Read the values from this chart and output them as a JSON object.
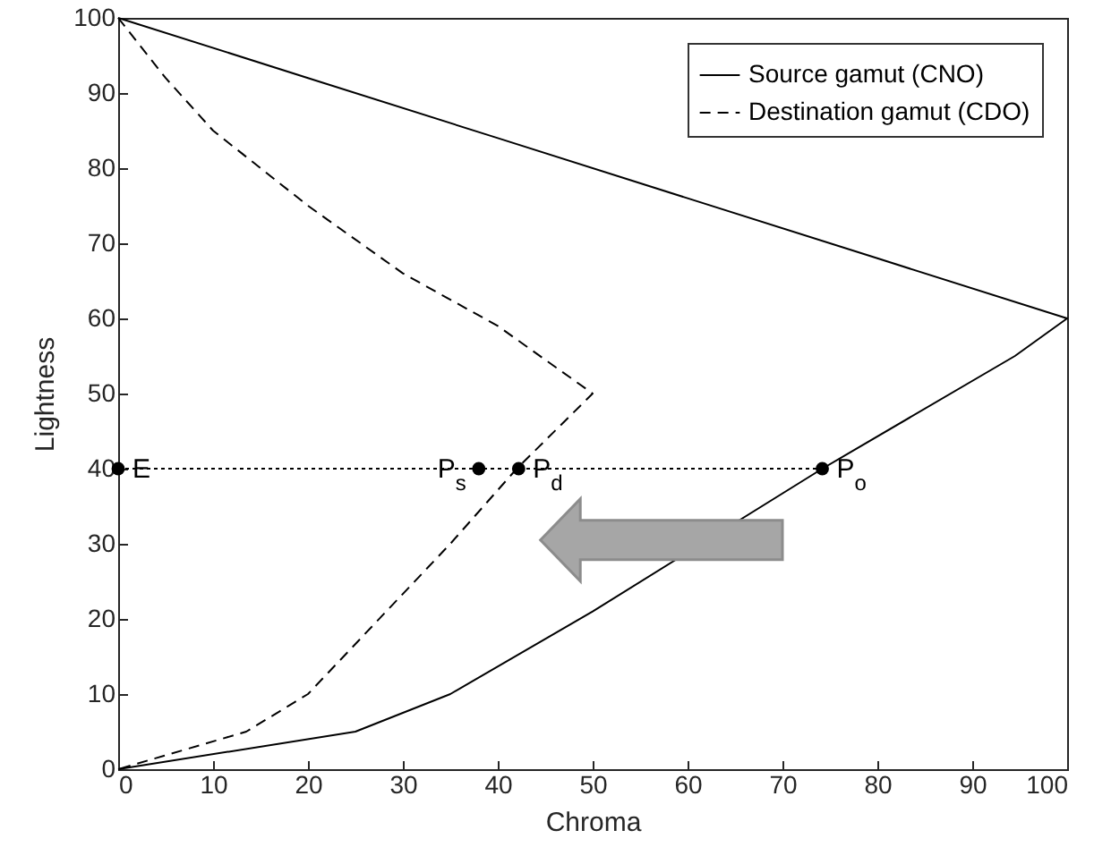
{
  "chart_data": {
    "type": "line",
    "xlabel": "Chroma",
    "ylabel": "Lightness",
    "xlim": [
      0,
      100
    ],
    "xticks": [
      0,
      10,
      20,
      30,
      40,
      50,
      60,
      70,
      80,
      90,
      100
    ],
    "ylim": [
      0,
      100
    ],
    "yticks": [
      0,
      10,
      20,
      30,
      40,
      50,
      60,
      70,
      80,
      90,
      100
    ],
    "grid": false,
    "legend": "top right",
    "series": [
      {
        "name": "Source gamut (CNO)",
        "color": "#000000",
        "line_style": "solid",
        "marker": "none",
        "x": [
          0,
          20,
          40,
          60,
          80,
          100,
          94.5,
          74.2,
          50,
          35,
          25,
          0
        ],
        "values": [
          100,
          92,
          84,
          76,
          68,
          60,
          55,
          40,
          21,
          10,
          5,
          0
        ]
      },
      {
        "name": "Destination gamut (CDO)",
        "color": "#000000",
        "line_style": "dashed",
        "marker": "none",
        "x": [
          0,
          5,
          10,
          20,
          30,
          40,
          50,
          42,
          35,
          20,
          13.5,
          0
        ],
        "values": [
          100,
          92,
          85,
          75,
          66,
          59,
          50,
          40,
          30,
          10,
          5,
          0
        ]
      },
      {
        "color": "#000000",
        "line_style": "dotted",
        "marker": "circle",
        "x": [
          0,
          38,
          42.2,
          74.2
        ],
        "values": [
          40,
          40,
          40,
          40
        ]
      }
    ],
    "annotations": [
      {
        "text": "E",
        "x": 0,
        "y": 40
      },
      {
        "text": "P$_{s}$",
        "x": 38,
        "y": 40
      },
      {
        "text": "P$_{d}$",
        "x": 42.2,
        "y": 40
      },
      {
        "text": "P$_{o}$",
        "x": 74.2,
        "y": 40
      }
    ]
  }
}
